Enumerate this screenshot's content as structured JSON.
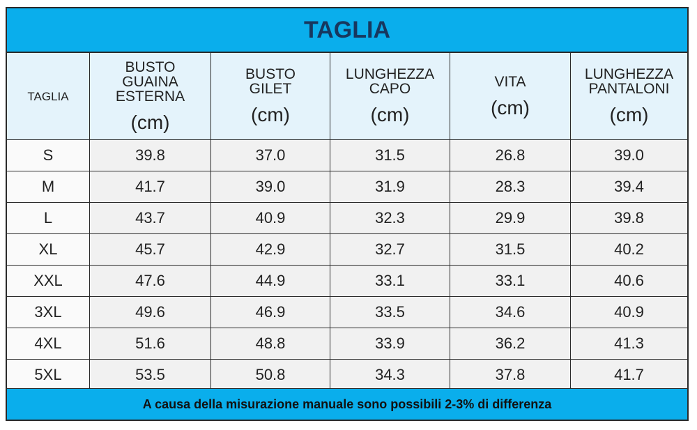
{
  "title": "TAGLIA",
  "header": [
    {
      "lines": [
        "TAGLIA"
      ]
    },
    {
      "lines": [
        "BUSTO",
        "GUAINA",
        "ESTERNA"
      ],
      "unit": "(cm)"
    },
    {
      "lines": [
        "BUSTO",
        "GILET"
      ],
      "unit": "(cm)"
    },
    {
      "lines": [
        "LUNGHEZZA",
        "CAPO"
      ],
      "unit": "(cm)"
    },
    {
      "lines": [
        "VITA"
      ],
      "unit": "(cm)"
    },
    {
      "lines": [
        "LUNGHEZZA",
        "PANTALONI"
      ],
      "unit": "(cm)"
    }
  ],
  "rows": [
    [
      "S",
      "39.8",
      "37.0",
      "31.5",
      "26.8",
      "39.0"
    ],
    [
      "M",
      "41.7",
      "39.0",
      "31.9",
      "28.3",
      "39.4"
    ],
    [
      "L",
      "43.7",
      "40.9",
      "32.3",
      "29.9",
      "39.8"
    ],
    [
      "XL",
      "45.7",
      "42.9",
      "32.7",
      "31.5",
      "40.2"
    ],
    [
      "XXL",
      "47.6",
      "44.9",
      "33.1",
      "33.1",
      "40.6"
    ],
    [
      "3XL",
      "49.6",
      "46.9",
      "33.5",
      "34.6",
      "40.9"
    ],
    [
      "4XL",
      "51.6",
      "48.8",
      "33.9",
      "36.2",
      "41.3"
    ],
    [
      "5XL",
      "53.5",
      "50.8",
      "34.3",
      "37.8",
      "41.7"
    ]
  ],
  "footer": "A causa della misurazione manuale sono possibili 2-3% di differenza"
}
